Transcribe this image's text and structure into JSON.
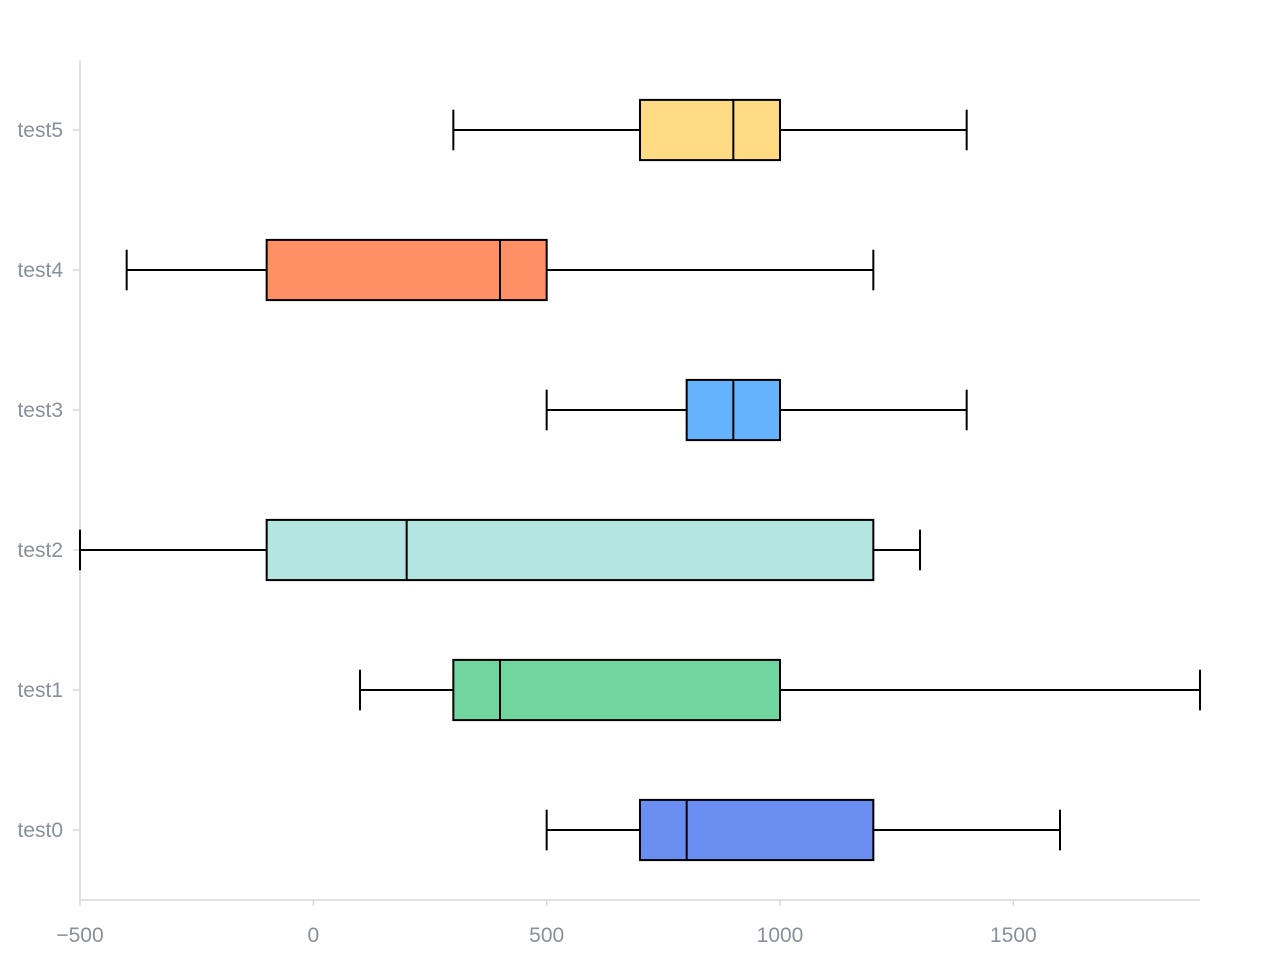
{
  "chart_data": {
    "type": "boxplot",
    "orientation": "horizontal",
    "title": "",
    "xlabel": "",
    "ylabel": "",
    "xlim": [
      -500,
      1900
    ],
    "x_ticks": [
      -500,
      0,
      500,
      1000,
      1500
    ],
    "x_tick_labels": [
      "−500",
      "0",
      "500",
      "1000",
      "1500"
    ],
    "categories": [
      "test0",
      "test1",
      "test2",
      "test3",
      "test4",
      "test5"
    ],
    "series": [
      {
        "category": "test0",
        "min": 500,
        "q1": 700,
        "median": 800,
        "q3": 1200,
        "max": 1600,
        "color": "#6a8ef2"
      },
      {
        "category": "test1",
        "min": 100,
        "q1": 300,
        "median": 400,
        "q3": 1000,
        "max": 1900,
        "color": "#71d5a0"
      },
      {
        "category": "test2",
        "min": -500,
        "q1": -100,
        "median": 200,
        "q3": 1200,
        "max": 1300,
        "color": "#b3e6e1"
      },
      {
        "category": "test3",
        "min": 500,
        "q1": 800,
        "median": 900,
        "q3": 1000,
        "max": 1400,
        "color": "#65b3fd"
      },
      {
        "category": "test4",
        "min": -400,
        "q1": -100,
        "median": 400,
        "q3": 500,
        "max": 1200,
        "color": "#ff8f65"
      },
      {
        "category": "test5",
        "min": 300,
        "q1": 700,
        "median": 900,
        "q3": 1000,
        "max": 1400,
        "color": "#fedb83"
      }
    ],
    "grid": false,
    "legend": "none"
  }
}
